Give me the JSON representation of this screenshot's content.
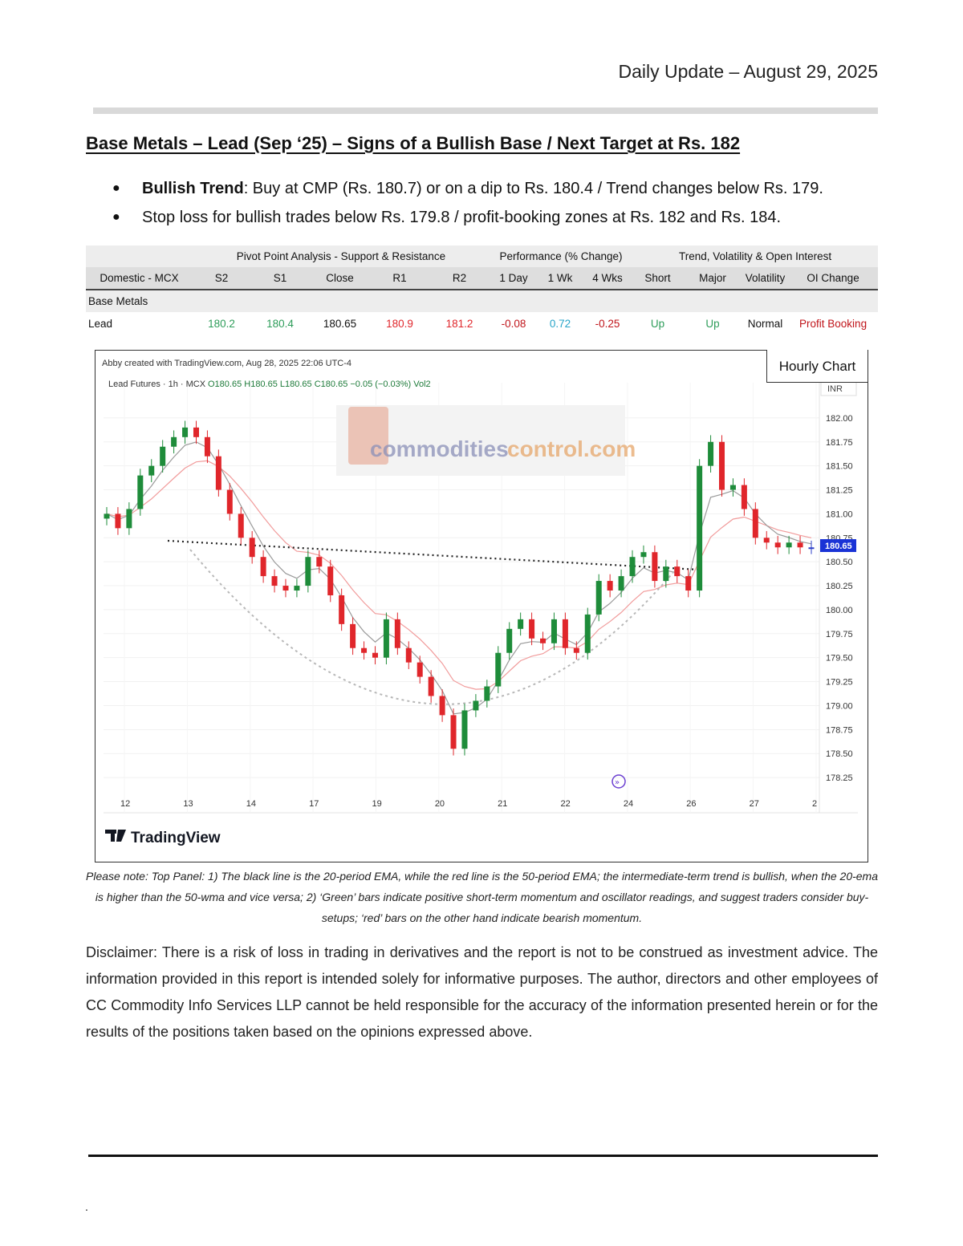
{
  "header": {
    "date": "Daily Update – August 29, 2025"
  },
  "title": "Base Metals – Lead (Sep   ‘25) – Signs of a Bullish Base / Next Target at Rs. 182",
  "bullets": [
    {
      "bold": "Bullish Trend",
      "text": ": Buy at CMP (Rs. 180.7) or on a dip to Rs. 180.4 / Trend changes below Rs. 179."
    },
    {
      "bold": "",
      "text": "Stop loss for bullish trades below Rs. 179.8 / profit-booking zones at Rs. 182 and Rs. 184."
    }
  ],
  "table": {
    "groups": [
      "Pivot Point Analysis - Support & Resistance",
      "Performance (% Change)",
      "Trend, Volatility & Open Interest"
    ],
    "headers": [
      "Domestic - MCX",
      "S2",
      "S1",
      "Close",
      "R1",
      "R2",
      "1 Day",
      "1 Wk",
      "4 Wks",
      "Short",
      "Major",
      "Volatility",
      "OI Change"
    ],
    "section": "Base Metals",
    "row": [
      "Lead",
      "180.2",
      "180.4",
      "180.65",
      "180.9",
      "181.2",
      "-0.08",
      "0.72",
      "-0.25",
      "Up",
      "Up",
      "Normal",
      "Profit Booking"
    ]
  },
  "chart": {
    "label": "Hourly Chart",
    "source_line": "Abby created with TradingView.com, Aug 28, 2025 22:06 UTC-4",
    "symbol_line": "Lead Futures · 1h · MCX",
    "ohlc": "O180.65 H180.65 L180.65 C180.65 −0.05 (−0.03%) Vol2",
    "currency": "INR",
    "last_price": "180.65",
    "watermark_a": "commodities",
    "watermark_b": "control.com",
    "brand": "TradingView",
    "colors": {
      "up": "#1e8c3a",
      "down": "#e0262b",
      "neutral": "#2d3fc8",
      "ema20": "#9a9a9a",
      "ema50": "#f19b9b",
      "accent": "#1a33d6"
    }
  },
  "chart_data": {
    "type": "candlestick",
    "ylim": [
      178.1,
      182.2
    ],
    "y_ticks": [
      "182.00",
      "181.75",
      "181.50",
      "181.25",
      "181.00",
      "180.75",
      "180.50",
      "180.25",
      "180.00",
      "179.75",
      "179.50",
      "179.25",
      "179.00",
      "178.75",
      "178.50",
      "178.25"
    ],
    "x_ticks": [
      "12",
      "13",
      "14",
      "17",
      "19",
      "20",
      "21",
      "22",
      "24",
      "26",
      "27",
      "2"
    ],
    "close_path": [
      181.0,
      180.85,
      181.05,
      181.4,
      181.5,
      181.7,
      181.8,
      181.9,
      181.8,
      181.6,
      181.25,
      181.0,
      180.75,
      180.55,
      180.35,
      180.25,
      180.2,
      180.25,
      180.55,
      180.45,
      180.15,
      179.85,
      179.6,
      179.55,
      179.5,
      179.9,
      179.6,
      179.45,
      179.3,
      179.1,
      178.9,
      178.55,
      178.95,
      179.05,
      179.2,
      179.55,
      179.8,
      179.9,
      179.7,
      179.65,
      179.9,
      179.6,
      179.55,
      179.95,
      180.3,
      180.2,
      180.35,
      180.55,
      180.6,
      180.3,
      180.45,
      180.35,
      180.2,
      181.5,
      181.75,
      181.25,
      181.3,
      181.05,
      180.75,
      180.7,
      180.65,
      180.7,
      180.65,
      180.65
    ]
  },
  "note": "Please note: Top Panel: 1) The black line is the 20-period EMA, while the red line is the 50-period EMA; the intermediate-term trend is bullish, when the 20-ema is higher than the 50-wma and vice versa; 2)   ‘Green’   bars indicate positive short-term momentum and oscillator readings, and suggest traders consider buy-setups;   ‘red’   bars on the other hand indicate bearish momentum.",
  "disclaimer": "Disclaimer: There is a risk of loss in trading in derivatives and the report is not to be construed as investment advice. The information provided in this report is intended solely for informative purposes. The author, directors and other employees of CC Commodity Info Services LLP cannot be held responsible for the accuracy of the information presented herein or for the results of the positions taken based on the opinions expressed above.",
  "footer": {
    "mark": "."
  }
}
